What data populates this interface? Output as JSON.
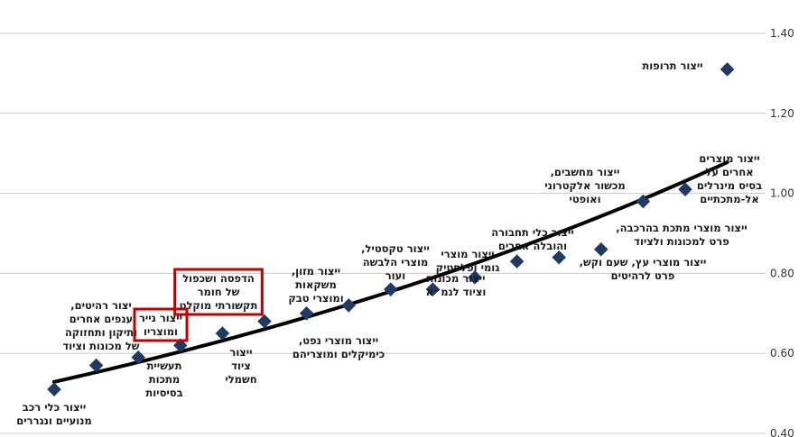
{
  "chart_data": {
    "type": "scatter",
    "title": "",
    "xlabel": "",
    "ylabel": "",
    "ylim": [
      0.4,
      1.4
    ],
    "yticks": [
      "0.40",
      "0.60",
      "0.80",
      "1.00",
      "1.20",
      "1.40"
    ],
    "grid": true,
    "point_color": "#1f3b63",
    "trend_color": "#000000",
    "highlight_color": "#c00000",
    "points": [
      {
        "x": 1,
        "y": 0.51,
        "label": [
          "ייצור כלי רכב",
          "מנועיים ונגררים"
        ]
      },
      {
        "x": 2,
        "y": 0.57,
        "label": [
          "יצור רהיטים,",
          "ענפים אחרים",
          "ותיקון ותחזוקה",
          "של מכונות וציוד"
        ]
      },
      {
        "x": 3,
        "y": 0.59,
        "label": [
          "תעשיית",
          "מתכות",
          "בסיסיות"
        ]
      },
      {
        "x": 4,
        "y": 0.62,
        "label": [
          "ייצור נייר",
          "ומוצריו"
        ],
        "highlight": true
      },
      {
        "x": 5,
        "y": 0.65,
        "label": [
          "ייצור",
          "ציוד",
          "חשמלי"
        ]
      },
      {
        "x": 6,
        "y": 0.68,
        "label": [
          "הדפסה ושכפול",
          "של חומר",
          "תקשורתי מוקלט"
        ],
        "highlight": true
      },
      {
        "x": 7,
        "y": 0.7,
        "label": [
          "ייצור מזון,",
          "משקאות",
          "ומוצרי טבק"
        ]
      },
      {
        "x": 8,
        "y": 0.72,
        "label": [
          "ייצור מוצרי נפט,",
          "כימיקלים ומוצריהם"
        ]
      },
      {
        "x": 9,
        "y": 0.76,
        "label": [
          "ייצור טקסטיל,",
          "מוצרי הלבשה",
          "ועור"
        ]
      },
      {
        "x": 10,
        "y": 0.76,
        "label": [
          "ייצור מכונות",
          "וציוד לנמ״א"
        ]
      },
      {
        "x": 11,
        "y": 0.79,
        "label": [
          "ייצור מוצרי",
          "גומי ופלסטיק"
        ]
      },
      {
        "x": 12,
        "y": 0.83,
        "label": [
          "ייצור כלי תחבורה",
          "והובלה אחרים"
        ]
      },
      {
        "x": 13,
        "y": 0.84,
        "label": [
          "ייצור מוצרי עץ, שעם וקש,",
          "פרט לרהיטים"
        ]
      },
      {
        "x": 14,
        "y": 0.86,
        "label": [
          "ייצור מוצרי מתכת בהרכבה,",
          "פרט למכונות ולציוד"
        ]
      },
      {
        "x": 15,
        "y": 0.98,
        "label": [
          "ייצור מחשבים,",
          "מכשור אלקטרוני",
          "ואופטי"
        ]
      },
      {
        "x": 16,
        "y": 1.01,
        "label": [
          "ייצור מוצרים",
          "אחרים על",
          "בסיס מינרלים",
          "אל-מתכתיים"
        ]
      },
      {
        "x": 17,
        "y": 1.31,
        "label": [
          "ייצור תרופות"
        ]
      }
    ]
  }
}
